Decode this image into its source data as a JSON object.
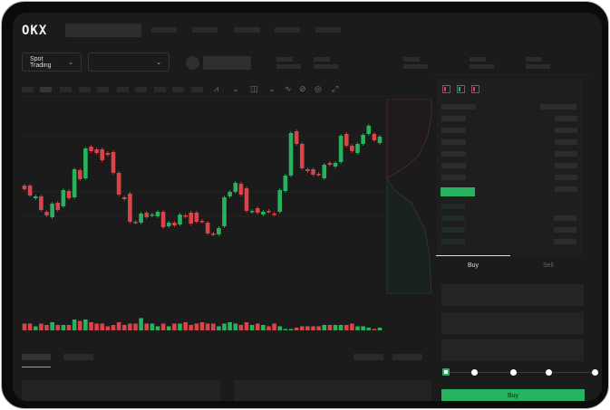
{
  "header": {
    "logo": "OKX"
  },
  "toolbar": {
    "market_type": "Spot Trading",
    "pair_dropdown": ""
  },
  "chart_icons": [
    "indicator-icon",
    "indicator-icon",
    "indicator-icon",
    "line-icon",
    "ruler-icon",
    "camera-icon",
    "settings-icon",
    "fullscreen-icon"
  ],
  "orderbook": {
    "layout_icons": [
      "orderbook-both-icon",
      "orderbook-buy-icon",
      "orderbook-sell-icon"
    ]
  },
  "trade_panel": {
    "tabs": [
      "Buy",
      "Sell"
    ],
    "active_tab": "Buy",
    "slider_level": 0,
    "slider_steps": 5
  },
  "colors": {
    "up": "#26b35f",
    "down": "#d9434a",
    "background": "#1b1b1b"
  },
  "chart_data": {
    "type": "candlestick",
    "ylim": [
      0,
      150
    ],
    "grid": true,
    "candles": [
      [
        67,
        63
      ],
      [
        67,
        56
      ],
      [
        53,
        55
      ],
      [
        55,
        40
      ],
      [
        38,
        34
      ],
      [
        32,
        47
      ],
      [
        48,
        40
      ],
      [
        44,
        62
      ],
      [
        61,
        53
      ],
      [
        54,
        85
      ],
      [
        84,
        74
      ],
      [
        75,
        108
      ],
      [
        110,
        105
      ],
      [
        107,
        103
      ],
      [
        107,
        95
      ],
      [
        103,
        101
      ],
      [
        104,
        81
      ],
      [
        81,
        57
      ],
      [
        54,
        52
      ],
      [
        58,
        27
      ],
      [
        27,
        26
      ],
      [
        26,
        36
      ],
      [
        37,
        32
      ],
      [
        34,
        35
      ],
      [
        33,
        38
      ],
      [
        38,
        21
      ],
      [
        22,
        26
      ],
      [
        26,
        23
      ],
      [
        24,
        35
      ],
      [
        34,
        33
      ],
      [
        37,
        25
      ],
      [
        37,
        27
      ],
      [
        28,
        27
      ],
      [
        26,
        14
      ],
      [
        14,
        13
      ],
      [
        13,
        20
      ],
      [
        22,
        54
      ],
      [
        55,
        60
      ],
      [
        60,
        70
      ],
      [
        69,
        57
      ],
      [
        64,
        39
      ],
      [
        38,
        39
      ],
      [
        42,
        37
      ],
      [
        35,
        38
      ],
      [
        39,
        38
      ],
      [
        36,
        35
      ],
      [
        38,
        62
      ],
      [
        61,
        78
      ],
      [
        78,
        125
      ],
      [
        127,
        113
      ],
      [
        113,
        86
      ],
      [
        85,
        83
      ],
      [
        85,
        79
      ],
      [
        80,
        79
      ],
      [
        75,
        90
      ],
      [
        92,
        90
      ],
      [
        88,
        92
      ],
      [
        93,
        122
      ],
      [
        124,
        111
      ],
      [
        111,
        105
      ],
      [
        103,
        113
      ],
      [
        113,
        123
      ],
      [
        124,
        133
      ],
      [
        124,
        117
      ],
      [
        114,
        121
      ]
    ],
    "volume": [
      5,
      5,
      3,
      5,
      4,
      6,
      4,
      4,
      4,
      8,
      7,
      8,
      6,
      5,
      5,
      3,
      4,
      6,
      4,
      5,
      5,
      9,
      5,
      5,
      3,
      5,
      3,
      5,
      5,
      6,
      4,
      5,
      6,
      5,
      5,
      3,
      5,
      6,
      5,
      4,
      6,
      4,
      5,
      4,
      3,
      5,
      3,
      1,
      1,
      2,
      3,
      3,
      3,
      3,
      4,
      4,
      4,
      4,
      4,
      5,
      3,
      3,
      2,
      1,
      2
    ]
  }
}
